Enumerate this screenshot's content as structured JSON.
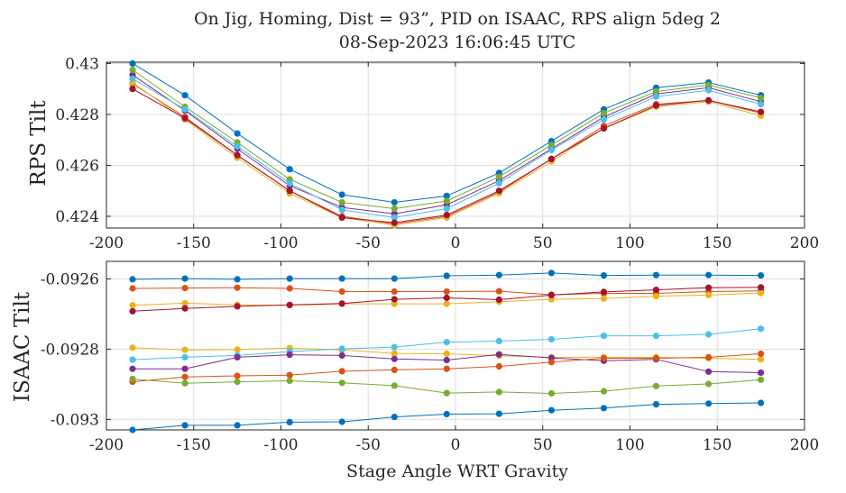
{
  "title_line1": "On Jig, Homing, Dist = 93”, PID on ISAAC, RPS align 5deg 2",
  "title_line2": "08-Sep-2023 16:06:45 UTC",
  "chart_data": [
    {
      "type": "line",
      "ylabel": "RPS Tilt",
      "xlim": [
        -200,
        200
      ],
      "ylim": [
        0.42354,
        0.43005
      ],
      "xticks": [
        -200,
        -150,
        -100,
        -50,
        0,
        50,
        100,
        150,
        200
      ],
      "xtick_labels": [
        "-200",
        "-150",
        "-100",
        "-50",
        "0",
        "50",
        "100",
        "150",
        "200"
      ],
      "yticks": [
        0.424,
        0.426,
        0.428,
        0.43
      ],
      "ytick_labels": [
        "0.424",
        "0.426",
        "0.428",
        "0.43"
      ],
      "grid": true,
      "x": [
        -185,
        -155,
        -125,
        -95,
        -65,
        -35,
        -5,
        25,
        55,
        85,
        115,
        145,
        175
      ],
      "series": [
        {
          "color": "#0072BD",
          "values": [
            0.43,
            0.42875,
            0.42725,
            0.42585,
            0.42485,
            0.42455,
            0.4248,
            0.4257,
            0.42695,
            0.4282,
            0.42905,
            0.42925,
            0.42875
          ]
        },
        {
          "color": "#D95319",
          "values": [
            0.4292,
            0.4279,
            0.4264,
            0.425,
            0.424,
            0.4237,
            0.424,
            0.42495,
            0.42625,
            0.42755,
            0.4284,
            0.42855,
            0.42805
          ]
        },
        {
          "color": "#EDB120",
          "values": [
            0.42925,
            0.4278,
            0.4263,
            0.4249,
            0.42395,
            0.42365,
            0.42395,
            0.4249,
            0.42615,
            0.42745,
            0.4283,
            0.4285,
            0.42795
          ]
        },
        {
          "color": "#7E2F8E",
          "values": [
            0.42955,
            0.42815,
            0.42665,
            0.4252,
            0.42435,
            0.4241,
            0.42445,
            0.4254,
            0.42665,
            0.4279,
            0.4288,
            0.42905,
            0.4285
          ]
        },
        {
          "color": "#77AC30",
          "values": [
            0.42975,
            0.4283,
            0.4269,
            0.42545,
            0.42455,
            0.4243,
            0.4246,
            0.42555,
            0.4268,
            0.42805,
            0.4289,
            0.42915,
            0.42865
          ]
        },
        {
          "color": "#4DBEEE",
          "values": [
            0.4294,
            0.4282,
            0.42675,
            0.4253,
            0.42425,
            0.42395,
            0.4243,
            0.4253,
            0.4266,
            0.4278,
            0.4287,
            0.42895,
            0.4284
          ]
        },
        {
          "color": "#A2142F",
          "values": [
            0.429,
            0.42785,
            0.4264,
            0.425,
            0.42395,
            0.42375,
            0.42405,
            0.425,
            0.42625,
            0.42745,
            0.42835,
            0.42855,
            0.4281
          ]
        }
      ]
    },
    {
      "type": "line",
      "ylabel": "ISAAC Tilt",
      "xlabel": "Stage Angle WRT Gravity",
      "xlim": [
        -200,
        200
      ],
      "ylim": [
        -0.09303,
        -0.09255
      ],
      "xticks": [
        -200,
        -150,
        -100,
        -50,
        0,
        50,
        100,
        150,
        200
      ],
      "xtick_labels": [
        "-200",
        "-150",
        "-100",
        "-50",
        "0",
        "50",
        "100",
        "150",
        "200"
      ],
      "yticks": [
        -0.093,
        -0.0928,
        -0.0926
      ],
      "ytick_labels": [
        "-0.093",
        "-0.0928",
        "-0.0926"
      ],
      "grid": true,
      "x": [
        -185,
        -155,
        -125,
        -95,
        -65,
        -35,
        -5,
        25,
        55,
        85,
        115,
        145,
        175
      ],
      "series": [
        {
          "color": "#0072BD",
          "values": [
            -0.092601,
            -0.092599,
            -0.092601,
            -0.092599,
            -0.092599,
            -0.092599,
            -0.092591,
            -0.092589,
            -0.092583,
            -0.09259,
            -0.092589,
            -0.092589,
            -0.09259
          ]
        },
        {
          "color": "#D95319",
          "values": [
            -0.092627,
            -0.092626,
            -0.092625,
            -0.092627,
            -0.092636,
            -0.092636,
            -0.092636,
            -0.092635,
            -0.092645,
            -0.092641,
            -0.092641,
            -0.092636,
            -0.092634
          ]
        },
        {
          "color": "#EDB120",
          "values": [
            -0.092675,
            -0.092669,
            -0.092674,
            -0.092675,
            -0.092671,
            -0.092671,
            -0.092671,
            -0.092665,
            -0.092658,
            -0.092656,
            -0.092649,
            -0.092646,
            -0.09264
          ]
        },
        {
          "color": "#A2142F",
          "values": [
            -0.092692,
            -0.092684,
            -0.092678,
            -0.092674,
            -0.09267,
            -0.092658,
            -0.092654,
            -0.092659,
            -0.092646,
            -0.092637,
            -0.092631,
            -0.092625,
            -0.092624
          ]
        },
        {
          "color": "#EDB120",
          "values": [
            -0.092796,
            -0.092802,
            -0.092801,
            -0.092797,
            -0.092802,
            -0.092812,
            -0.092813,
            -0.092819,
            -0.092823,
            -0.092823,
            -0.092823,
            -0.092826,
            -0.092829
          ]
        },
        {
          "color": "#4DBEEE",
          "values": [
            -0.09283,
            -0.092823,
            -0.092818,
            -0.092807,
            -0.092799,
            -0.092794,
            -0.09278,
            -0.092777,
            -0.092772,
            -0.092762,
            -0.092762,
            -0.092758,
            -0.092742
          ]
        },
        {
          "color": "#7E2F8E",
          "values": [
            -0.092856,
            -0.092856,
            -0.092823,
            -0.092816,
            -0.092818,
            -0.092828,
            -0.092831,
            -0.092815,
            -0.092825,
            -0.092833,
            -0.092829,
            -0.092864,
            -0.092867
          ]
        },
        {
          "color": "#D95319",
          "values": [
            -0.092893,
            -0.092879,
            -0.092876,
            -0.092874,
            -0.092863,
            -0.092859,
            -0.092856,
            -0.092849,
            -0.092837,
            -0.092826,
            -0.092826,
            -0.092823,
            -0.092813
          ]
        },
        {
          "color": "#77AC30",
          "values": [
            -0.092885,
            -0.092897,
            -0.092893,
            -0.09289,
            -0.092896,
            -0.092904,
            -0.092925,
            -0.092922,
            -0.092926,
            -0.09292,
            -0.092905,
            -0.092899,
            -0.092887
          ]
        },
        {
          "color": "#0072BD",
          "values": [
            -0.09303,
            -0.093017,
            -0.093017,
            -0.093008,
            -0.093007,
            -0.092993,
            -0.092985,
            -0.092984,
            -0.092974,
            -0.092968,
            -0.092957,
            -0.092955,
            -0.092953
          ]
        }
      ]
    }
  ]
}
